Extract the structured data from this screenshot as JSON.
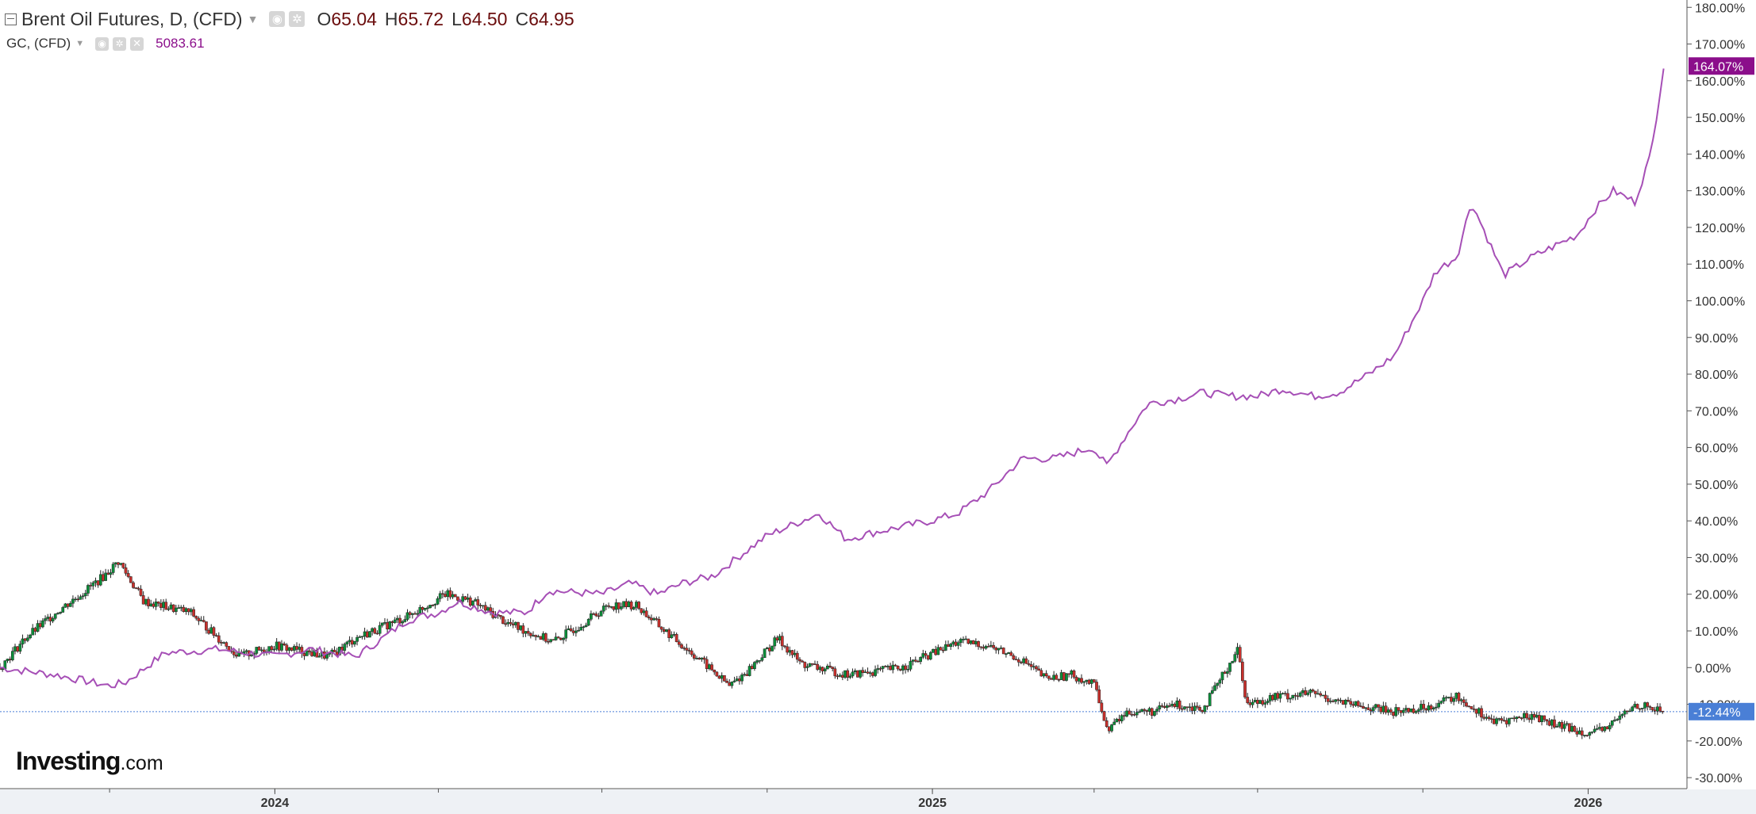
{
  "header": {
    "title": "Brent Oil Futures, D, (CFD)",
    "ohlc": [
      {
        "key": "O",
        "value": "65.04"
      },
      {
        "key": "H",
        "value": "65.72"
      },
      {
        "key": "L",
        "value": "64.50"
      },
      {
        "key": "C",
        "value": "64.95"
      }
    ],
    "compare_symbol": "GC, (CFD)",
    "compare_value": "5083.61"
  },
  "brand": {
    "name": "Investing",
    "suffix": ".com"
  },
  "colors": {
    "brent_up": "#0b8f3a",
    "brent_down": "#c9302c",
    "gold_line": "#a64fb6",
    "gold_badge": "#8b0e8b",
    "brent_badge": "#4a7fd6"
  },
  "chart_data": {
    "type": "line",
    "y_axis": {
      "unit": "percent change",
      "ticks": [
        "180.00%",
        "170.00%",
        "160.00%",
        "150.00%",
        "140.00%",
        "130.00%",
        "120.00%",
        "110.00%",
        "100.00%",
        "90.00%",
        "80.00%",
        "70.00%",
        "60.00%",
        "50.00%",
        "40.00%",
        "30.00%",
        "20.00%",
        "10.00%",
        "0.00%",
        "-10.00%",
        "-20.00%",
        "-30.00%"
      ],
      "ylim": [
        -33,
        182
      ]
    },
    "x_axis": {
      "ticks": [
        "2024",
        "2025",
        "2026"
      ],
      "xlim": [
        "2023-08-01",
        "2026-02-25"
      ],
      "tick_dates": [
        "2024-01-01",
        "2025-01-01",
        "2026-01-01"
      ]
    },
    "series": [
      {
        "key": "gold",
        "style": "line",
        "last_label": "164.07%",
        "x": [
          "2023-08-01",
          "2023-09-01",
          "2023-10-01",
          "2023-10-10",
          "2023-11-01",
          "2023-12-01",
          "2024-01-01",
          "2024-01-20",
          "2024-02-15",
          "2024-03-01",
          "2024-03-15",
          "2024-04-01",
          "2024-04-12",
          "2024-05-01",
          "2024-05-20",
          "2024-06-01",
          "2024-07-01",
          "2024-07-17",
          "2024-08-01",
          "2024-08-15",
          "2024-09-01",
          "2024-09-20",
          "2024-10-01",
          "2024-10-30",
          "2024-11-14",
          "2024-12-01",
          "2024-12-31",
          "2025-01-15",
          "2025-02-01",
          "2025-02-20",
          "2025-03-10",
          "2025-03-31",
          "2025-04-08",
          "2025-04-21",
          "2025-05-01",
          "2025-05-15",
          "2025-06-01",
          "2025-06-15",
          "2025-07-01",
          "2025-07-15",
          "2025-08-01",
          "2025-08-15",
          "2025-09-01",
          "2025-09-15",
          "2025-10-01",
          "2025-10-08",
          "2025-10-20",
          "2025-10-28",
          "2025-11-15",
          "2025-12-01",
          "2025-12-26",
          "2026-01-05",
          "2026-01-15",
          "2026-01-27",
          "2026-02-05",
          "2026-02-12"
        ],
        "y": [
          0,
          -2,
          -5,
          -4,
          4,
          5,
          3,
          5,
          3,
          8,
          13,
          15,
          18,
          15,
          15,
          21,
          20,
          23,
          20,
          23,
          25,
          32,
          36,
          42,
          35,
          37,
          40,
          42,
          48,
          57,
          57,
          60,
          55,
          65,
          72,
          73,
          75,
          74,
          74,
          76,
          74,
          75,
          80,
          85,
          100,
          108,
          112,
          127,
          107,
          112,
          118,
          125,
          130,
          127,
          140,
          164
        ]
      },
      {
        "key": "brent",
        "style": "candles",
        "last_label": "-12.44%",
        "x": [
          "2023-08-01",
          "2023-08-15",
          "2023-09-01",
          "2023-09-15",
          "2023-09-28",
          "2023-10-06",
          "2023-10-20",
          "2023-11-15",
          "2023-12-12",
          "2024-01-01",
          "2024-01-31",
          "2024-02-15",
          "2024-03-15",
          "2024-04-05",
          "2024-04-20",
          "2024-05-10",
          "2024-06-04",
          "2024-06-20",
          "2024-07-05",
          "2024-07-20",
          "2024-08-05",
          "2024-08-25",
          "2024-09-10",
          "2024-09-20",
          "2024-10-07",
          "2024-10-20",
          "2024-11-15",
          "2024-12-15",
          "2025-01-15",
          "2025-02-01",
          "2025-02-20",
          "2025-03-05",
          "2025-03-20",
          "2025-04-02",
          "2025-04-08",
          "2025-04-20",
          "2025-05-05",
          "2025-05-15",
          "2025-06-01",
          "2025-06-13",
          "2025-06-20",
          "2025-06-25",
          "2025-07-10",
          "2025-08-01",
          "2025-08-20",
          "2025-09-15",
          "2025-10-01",
          "2025-10-20",
          "2025-11-10",
          "2025-12-01",
          "2025-12-16",
          "2026-01-05",
          "2026-01-15",
          "2026-01-28",
          "2026-02-12"
        ],
        "y": [
          0,
          8,
          15,
          20,
          25,
          29,
          18,
          15,
          3,
          6,
          3,
          8,
          14,
          20,
          18,
          12,
          7,
          12,
          17,
          17,
          10,
          2,
          -5,
          -1,
          8,
          1,
          -2,
          0,
          7,
          6,
          2,
          -3,
          -2,
          -5,
          -17,
          -12,
          -12,
          -10,
          -11,
          -1,
          5,
          -10,
          -8,
          -7,
          -10,
          -12,
          -11,
          -8,
          -15,
          -13,
          -16,
          -18,
          -15,
          -10,
          -12
        ]
      }
    ]
  }
}
